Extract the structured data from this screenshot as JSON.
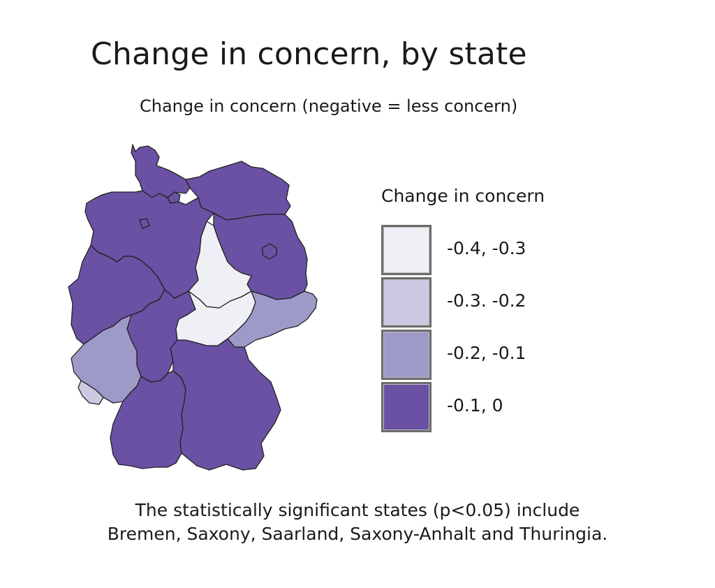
{
  "title": "Change in concern, by state",
  "subtitle": "Change in concern (negative = less concern)",
  "legend": {
    "title": "Change in concern",
    "items": [
      {
        "label": "-0.4, -0.3",
        "color": "#efeff6"
      },
      {
        "label": "-0.3. -0.2",
        "color": "#cbc9e2"
      },
      {
        "label": "-0.2, -0.1",
        "color": "#9e9ac8"
      },
      {
        "label": "-0.1, 0",
        "color": "#6a51a3"
      }
    ]
  },
  "chart_data": {
    "type": "choropleth",
    "bins": [
      "-0.4, -0.3",
      "-0.3. -0.2",
      "-0.2, -0.1",
      "-0.1, 0"
    ],
    "regions": [
      {
        "name": "Schleswig-Holstein",
        "bin": 3
      },
      {
        "name": "Hamburg",
        "bin": 3
      },
      {
        "name": "Mecklenburg-Vorpommern",
        "bin": 3
      },
      {
        "name": "Lower Saxony",
        "bin": 3
      },
      {
        "name": "Bremen",
        "bin": 3
      },
      {
        "name": "Brandenburg",
        "bin": 3
      },
      {
        "name": "Berlin",
        "bin": 3
      },
      {
        "name": "Saxony-Anhalt",
        "bin": 0
      },
      {
        "name": "North Rhine-Westphalia",
        "bin": 3
      },
      {
        "name": "Hesse",
        "bin": 3
      },
      {
        "name": "Thuringia",
        "bin": 0
      },
      {
        "name": "Saxony",
        "bin": 2
      },
      {
        "name": "Rhineland-Palatinate",
        "bin": 2
      },
      {
        "name": "Saarland",
        "bin": 1
      },
      {
        "name": "Baden-Württemberg",
        "bin": 3
      },
      {
        "name": "Bavaria",
        "bin": 3
      }
    ]
  },
  "footnote": {
    "line1": "The statistically significant states (p<0.05) include",
    "line2": "Bremen, Saxony, Saarland, Saxony-Anhalt and Thuringia."
  }
}
